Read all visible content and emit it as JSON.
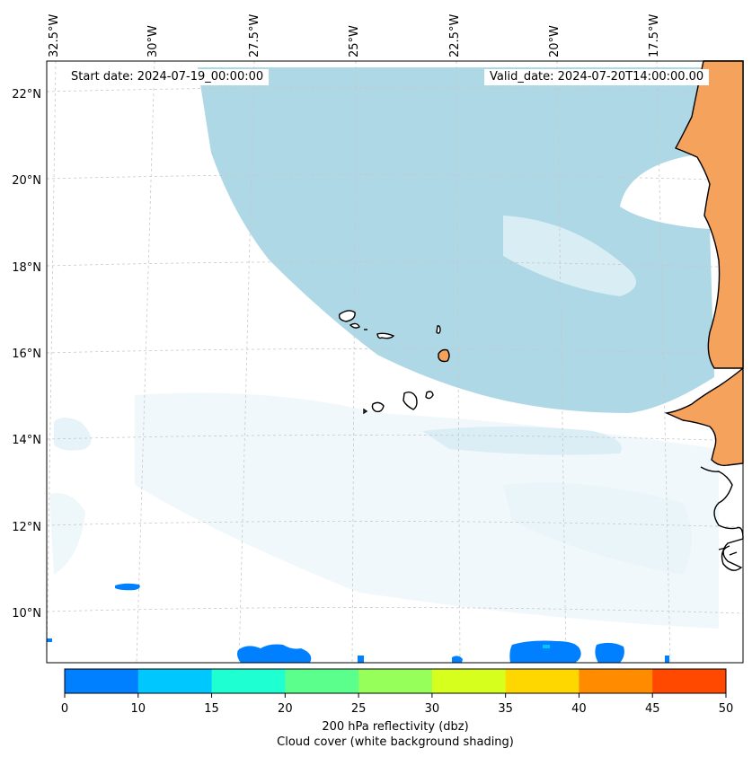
{
  "map": {
    "start_date_label": "Start date: 2024-07-19_00:00:00",
    "valid_date_label": "Valid_date: 2024-07-20T14:00:00.00",
    "longitude_labels": [
      "32.5°W",
      "30°W",
      "27.5°W",
      "25°W",
      "22.5°W",
      "20°W",
      "17.5°W"
    ],
    "latitude_labels": [
      "22°N",
      "20°N",
      "18°N",
      "16°N",
      "14°N",
      "12°N",
      "10°N"
    ],
    "colors": {
      "cloud": "#aed8e6",
      "cloud_faint": "#e6f3f8",
      "land": "#f5a25d",
      "coast": "#000000",
      "grid": "#c8c8c8"
    }
  },
  "colorbar": {
    "ticks": [
      "0",
      "10",
      "15",
      "20",
      "25",
      "30",
      "35",
      "40",
      "45",
      "50"
    ],
    "colors": [
      "#0080ff",
      "#00c8ff",
      "#1effd2",
      "#5aff8c",
      "#96ff5a",
      "#d7ff1e",
      "#ffd700",
      "#ff8c00",
      "#ff4800"
    ],
    "label": "200 hPa reflectivity (dbz)",
    "sublabel": "Cloud cover (white background shading)"
  }
}
